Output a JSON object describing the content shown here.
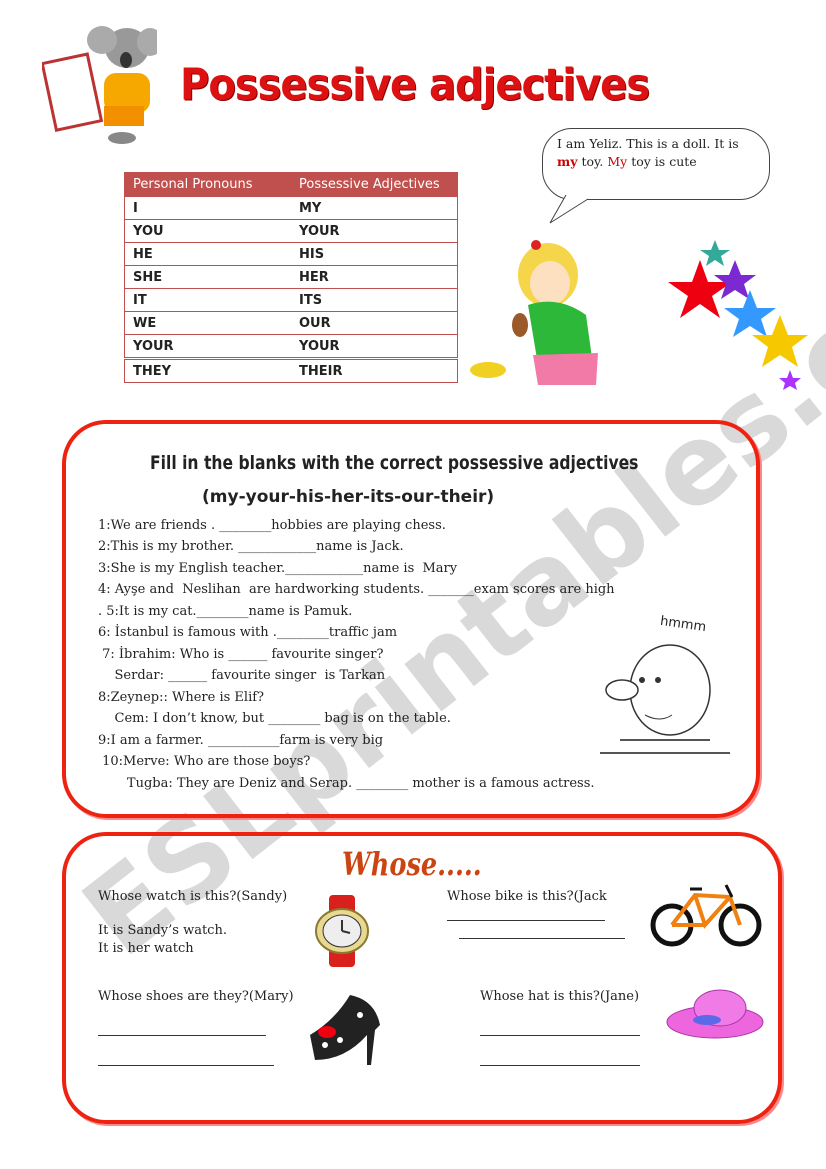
{
  "title": "Possessive adjectives",
  "speech_bubble": {
    "line1": "I am Yeliz. This is a doll. It is",
    "red1": "my",
    "mid": " toy. ",
    "red2": "My",
    "end": " toy is cute"
  },
  "table": {
    "headers": [
      "Personal Pronouns",
      "Possessive Adjectives"
    ],
    "rows": [
      [
        "I",
        "MY"
      ],
      [
        "YOU",
        "YOUR"
      ],
      [
        "HE",
        "HIS"
      ],
      [
        "SHE",
        "HER"
      ],
      [
        "IT",
        "ITS"
      ],
      [
        "WE",
        "OUR"
      ],
      [
        "YOUR",
        "YOUR"
      ],
      [
        "THEY",
        "THEIR"
      ]
    ],
    "header_color": "#c0504d"
  },
  "exercise": {
    "title": "Fill in the blanks with the correct possessive adjectives",
    "subtitle": "(my-your-his-her-its-our-their)",
    "lines": [
      "1:We are friends . ________hobbies are playing chess.",
      "2:This is my brother. ____________name is Jack.",
      "3:She is my English teacher.____________name is  Mary",
      "4: Ayşe and  Neslihan  are hardworking students. _______exam scores are high",
      ". 5:It is my cat.________name is Pamuk.",
      "6: İstanbul is famous with .________traffic jam",
      " 7: İbrahim: Who is ______ favourite singer?",
      "    Serdar: ______ favourite singer  is Tarkan",
      "8:Zeynep:: Where is Elif?",
      "    Cem: I don’t know, but ________ bag is on the table.",
      "9:I am a farmer. ___________farm is very big",
      " 10:Merve: Who are those boys?",
      "       Tugba: They are Deniz and Serap. ________ mother is a famous actress."
    ],
    "thinking_caption": "hmmm"
  },
  "whose": {
    "title": "Whose.....",
    "watch": {
      "question": "Whose watch is this?(Sandy)",
      "answer1": "It is Sandy’s watch.",
      "answer2": "It is her watch"
    },
    "bike": {
      "question": "Whose bike is this?(Jack"
    },
    "shoes": {
      "question": "Whose shoes are they?(Mary)"
    },
    "hat": {
      "question": "Whose hat is this?(Jane)"
    }
  },
  "watermark": "ESLprintables.com",
  "accent_color": "#e21111"
}
